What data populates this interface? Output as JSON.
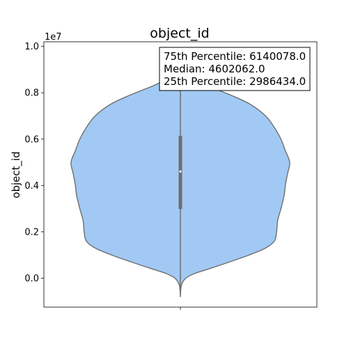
{
  "chart_data": {
    "type": "violin",
    "title": "object_id",
    "xlabel": "",
    "ylabel": "object_id",
    "y_offset_label": "1e7",
    "ylim": [
      -1250000,
      10200000
    ],
    "yticks": [
      0,
      2000000,
      4000000,
      6000000,
      8000000,
      10000000
    ],
    "ytick_labels": [
      "0.0",
      "0.2",
      "0.4",
      "0.6",
      "0.8",
      "1.0"
    ],
    "violin_color": "#a1c9f4",
    "edge_color": "#6e6e6e",
    "stats": {
      "q1": 2986434.0,
      "median": 4602062.0,
      "q3": 6140078.0,
      "whisker_low": 0,
      "whisker_high": 8600000
    },
    "density_profile": [
      {
        "y": -750000,
        "w": 0.0
      },
      {
        "y": -300000,
        "w": 0.01
      },
      {
        "y": 0,
        "w": 0.05
      },
      {
        "y": 200000,
        "w": 0.13
      },
      {
        "y": 400000,
        "w": 0.26
      },
      {
        "y": 700000,
        "w": 0.45
      },
      {
        "y": 1000000,
        "w": 0.63
      },
      {
        "y": 1300000,
        "w": 0.78
      },
      {
        "y": 1600000,
        "w": 0.86
      },
      {
        "y": 2000000,
        "w": 0.88
      },
      {
        "y": 2500000,
        "w": 0.89
      },
      {
        "y": 3000000,
        "w": 0.92
      },
      {
        "y": 3600000,
        "w": 0.95
      },
      {
        "y": 4000000,
        "w": 0.96
      },
      {
        "y": 4500000,
        "w": 0.98
      },
      {
        "y": 5000000,
        "w": 1.0
      },
      {
        "y": 5500000,
        "w": 0.96
      },
      {
        "y": 6000000,
        "w": 0.92
      },
      {
        "y": 6500000,
        "w": 0.86
      },
      {
        "y": 7000000,
        "w": 0.78
      },
      {
        "y": 7500000,
        "w": 0.64
      },
      {
        "y": 7900000,
        "w": 0.46
      },
      {
        "y": 8300000,
        "w": 0.25
      },
      {
        "y": 8600000,
        "w": 0.12
      },
      {
        "y": 8800000,
        "w": 0.0
      }
    ],
    "annotation_lines": [
      "75th Percentile: 6140078.0",
      "Median: 4602062.0",
      "25th Percentile: 2986434.0"
    ]
  }
}
